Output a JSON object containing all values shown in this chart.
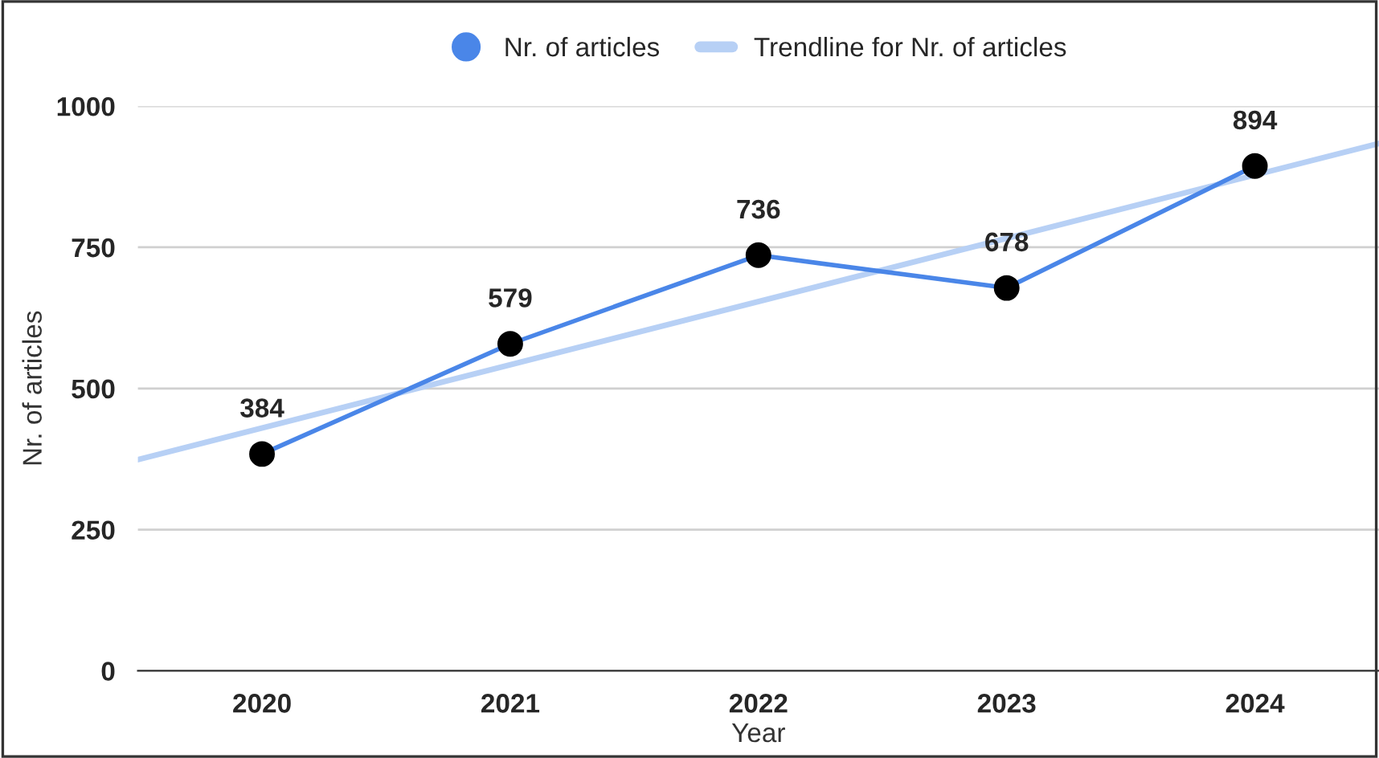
{
  "chart_data": {
    "type": "line",
    "xlabel": "Year",
    "ylabel": "Nr. of articles",
    "xlim": [
      2019.5,
      2024.5
    ],
    "xticks": [
      2020,
      2021,
      2022,
      2023,
      2024
    ],
    "ylim": [
      0,
      1000
    ],
    "yticks": [
      0,
      250,
      500,
      750,
      1000
    ],
    "grid": "y",
    "legend": "top",
    "series": [
      {
        "name": "Nr. of articles",
        "color": "#4a86e8",
        "x": [
          2020,
          2021,
          2022,
          2023,
          2024
        ],
        "values": [
          384,
          579,
          736,
          678,
          894
        ],
        "marker": "circle",
        "value_labels": [
          "384",
          "579",
          "736",
          "678",
          "894"
        ]
      },
      {
        "name": "Trendline for Nr. of articles",
        "color": "#b7d0f5",
        "x": [
          2019.5,
          2024.5
        ],
        "values": [
          374,
          934
        ],
        "marker": "none"
      }
    ]
  }
}
